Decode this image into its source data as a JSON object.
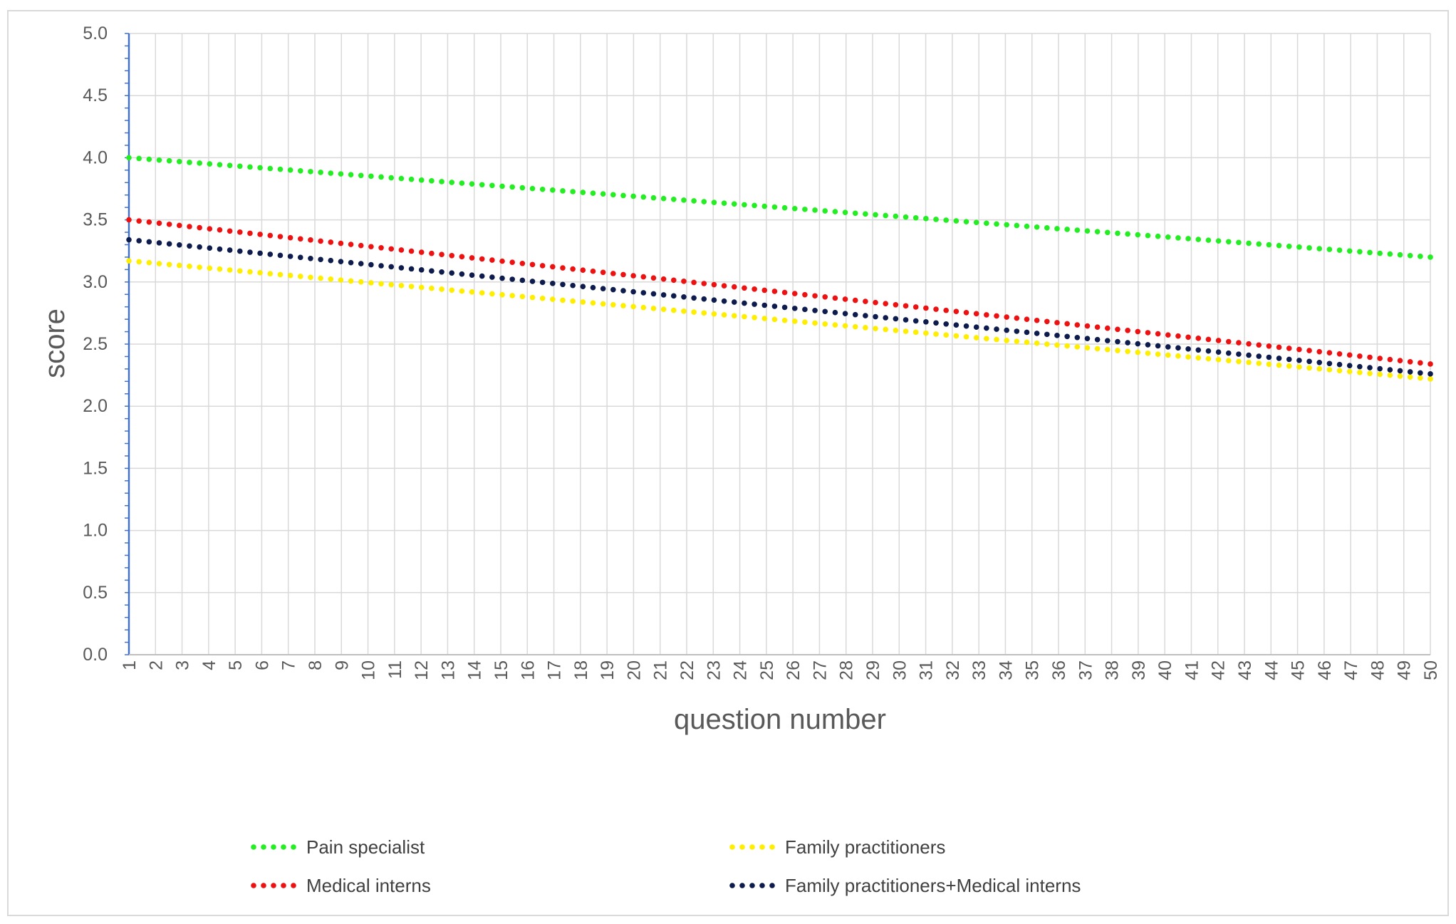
{
  "chart_data": {
    "type": "line",
    "title": "",
    "xlabel": "question number",
    "ylabel": "score",
    "x": [
      1,
      2,
      3,
      4,
      5,
      6,
      7,
      8,
      9,
      10,
      11,
      12,
      13,
      14,
      15,
      16,
      17,
      18,
      19,
      20,
      21,
      22,
      23,
      24,
      25,
      26,
      27,
      28,
      29,
      30,
      31,
      32,
      33,
      34,
      35,
      36,
      37,
      38,
      39,
      40,
      41,
      42,
      43,
      44,
      45,
      46,
      47,
      48,
      49,
      50
    ],
    "xlim": [
      1,
      50
    ],
    "ylim": [
      0,
      5
    ],
    "yticks": [
      "0.0",
      "0.5",
      "1.0",
      "1.5",
      "2.0",
      "2.5",
      "3.0",
      "3.5",
      "4.0",
      "4.5",
      "5.0"
    ],
    "grid": true,
    "legend_position": "bottom",
    "series": [
      {
        "name": "Pain specialist",
        "color": "#22ee22",
        "start": 4.0,
        "end": 3.2
      },
      {
        "name": "Family practitioners",
        "color": "#ffee00",
        "start": 3.17,
        "end": 2.22
      },
      {
        "name": "Medical interns",
        "color": "#ee1111",
        "start": 3.5,
        "end": 2.34
      },
      {
        "name": "Family practitioners+Medical interns",
        "color": "#0d1b4d",
        "start": 3.34,
        "end": 2.26
      }
    ]
  }
}
